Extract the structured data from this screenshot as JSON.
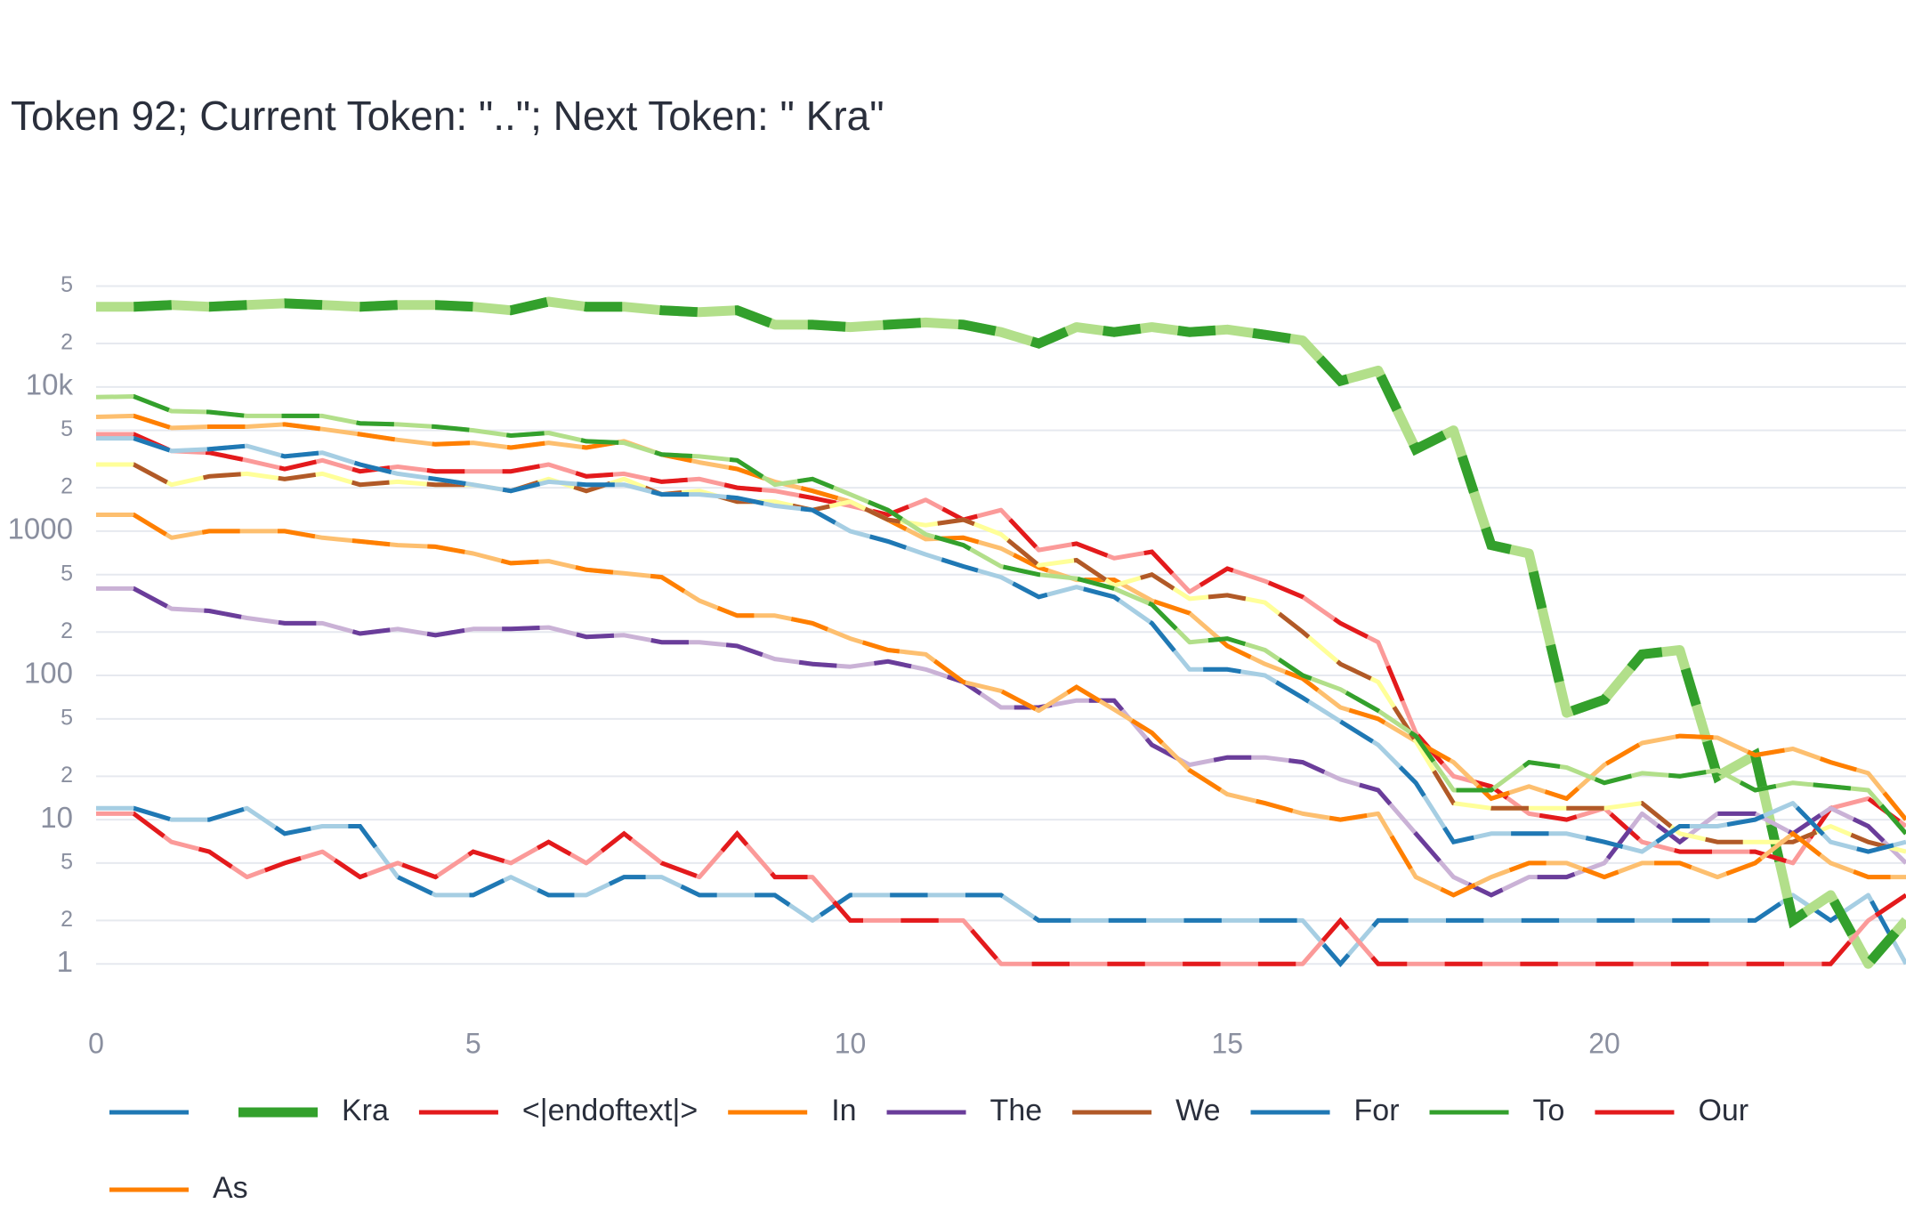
{
  "chart_data": {
    "type": "line",
    "title": "Token 92; Current Token: \"..\"; Next Token: \" Kra\"",
    "x": [
      0,
      0.5,
      1,
      1.5,
      2,
      2.5,
      3,
      3.5,
      4,
      4.5,
      5,
      5.5,
      6,
      6.5,
      7,
      7.5,
      8,
      8.5,
      9,
      9.5,
      10,
      10.5,
      11,
      11.5,
      12,
      12.5,
      13,
      13.5,
      14,
      14.5,
      15,
      15.5,
      16,
      16.5,
      17,
      17.5,
      18,
      18.5,
      19,
      19.5,
      20,
      20.5,
      21,
      21.5,
      22,
      22.5,
      23,
      23.5,
      24
    ],
    "xlim": [
      0,
      24
    ],
    "xticks": [
      0,
      5,
      10,
      15,
      20
    ],
    "log_y": true,
    "ylim": [
      0.5,
      75000
    ],
    "yticks": [
      1,
      {
        "value": 2,
        "label": "2"
      },
      {
        "value": 5,
        "label": "5"
      },
      10,
      {
        "value": 20,
        "label": "2"
      },
      {
        "value": 50,
        "label": "5"
      },
      100,
      {
        "value": 200,
        "label": "2"
      },
      {
        "value": 500,
        "label": "5"
      },
      1000,
      {
        "value": 2000,
        "label": "2"
      },
      {
        "value": 5000,
        "label": "5"
      },
      {
        "value": 10000,
        "label": "10k"
      },
      {
        "value": 20000,
        "label": "2"
      },
      {
        "value": 50000,
        "label": "5"
      }
    ],
    "grid": true,
    "series": [
      {
        "colors": [
          "#1f78b4",
          "#a6cee3"
        ],
        "values": [
          12,
          12,
          10,
          10,
          12,
          8,
          9,
          9,
          4,
          3,
          3,
          4,
          3,
          3,
          4,
          4,
          3,
          3,
          3,
          2,
          3,
          3,
          3,
          3,
          3,
          2,
          2,
          2,
          2,
          2,
          2,
          2,
          2,
          1,
          2,
          2,
          2,
          2,
          2,
          2,
          2,
          2,
          2,
          2,
          2,
          3,
          2,
          3,
          1
        ]
      },
      {
        "name": "Kra",
        "colors": [
          "#33a02c",
          "#b2df8a"
        ],
        "highlight": true,
        "values": [
          36000,
          36000,
          37000,
          36000,
          37000,
          38000,
          37000,
          36000,
          37000,
          37000,
          36000,
          34000,
          39000,
          36000,
          36000,
          34000,
          33000,
          34000,
          27000,
          27000,
          26000,
          27000,
          28000,
          27000,
          24000,
          20000,
          26000,
          24000,
          26000,
          24000,
          25000,
          23000,
          21000,
          11000,
          13000,
          3700,
          5000,
          800,
          700,
          55,
          68,
          140,
          150,
          20,
          28,
          2,
          3,
          1,
          2
        ]
      },
      {
        "name": "<|endoftext|>",
        "colors": [
          "#e31a1c",
          "#fb9a99"
        ],
        "values": [
          4700,
          4700,
          3600,
          3500,
          3100,
          2700,
          3100,
          2600,
          2800,
          2600,
          2600,
          2600,
          2900,
          2400,
          2500,
          2200,
          2300,
          2000,
          1900,
          1700,
          1500,
          1300,
          1650,
          1200,
          1400,
          740,
          820,
          650,
          720,
          380,
          550,
          450,
          350,
          230,
          170,
          40,
          20,
          17,
          11,
          10,
          12,
          7,
          6,
          6,
          6,
          5,
          12,
          14,
          9
        ]
      },
      {
        "name": "In",
        "colors": [
          "#ff7f00",
          "#fdbf6f"
        ],
        "values": [
          6200,
          6300,
          5200,
          5300,
          5300,
          5500,
          5100,
          4700,
          4300,
          4000,
          4100,
          3800,
          4100,
          3800,
          4200,
          3400,
          3000,
          2700,
          2200,
          1900,
          1600,
          1200,
          880,
          900,
          760,
          560,
          460,
          460,
          330,
          270,
          160,
          120,
          95,
          60,
          50,
          35,
          25,
          14,
          17,
          14,
          24,
          34,
          38,
          37,
          28,
          31,
          25,
          21,
          10
        ]
      },
      {
        "name": "The",
        "colors": [
          "#6a3d9a",
          "#cab2d6"
        ],
        "values": [
          400,
          400,
          290,
          280,
          250,
          230,
          230,
          195,
          210,
          190,
          210,
          210,
          215,
          185,
          190,
          170,
          170,
          160,
          130,
          120,
          115,
          125,
          110,
          90,
          60,
          60,
          67,
          67,
          33,
          24,
          27,
          27,
          25,
          19,
          16,
          8,
          4,
          3,
          4,
          4,
          5,
          11,
          7,
          11,
          11,
          8,
          12,
          9,
          5
        ]
      },
      {
        "name": "We",
        "colors": [
          "#b15928",
          "#ffff99"
        ],
        "values": [
          2900,
          2900,
          2100,
          2400,
          2500,
          2300,
          2500,
          2100,
          2200,
          2100,
          2100,
          1900,
          2300,
          1900,
          2300,
          1800,
          1900,
          1600,
          1600,
          1400,
          1600,
          1200,
          1100,
          1200,
          950,
          580,
          630,
          420,
          500,
          340,
          360,
          320,
          200,
          120,
          90,
          35,
          13,
          12,
          12,
          12,
          12,
          13,
          8,
          7,
          7,
          7,
          9,
          7,
          6
        ]
      },
      {
        "name": "For",
        "colors": [
          "#1f78b4",
          "#a6cee3"
        ],
        "values": [
          4400,
          4400,
          3600,
          3700,
          3900,
          3300,
          3500,
          2900,
          2500,
          2300,
          2100,
          1900,
          2200,
          2100,
          2100,
          1800,
          1800,
          1700,
          1500,
          1400,
          1000,
          850,
          690,
          570,
          480,
          350,
          410,
          350,
          230,
          110,
          110,
          100,
          70,
          48,
          33,
          18,
          7,
          8,
          8,
          8,
          7,
          6,
          9,
          9,
          10,
          13,
          7,
          6,
          7
        ]
      },
      {
        "name": "To",
        "colors": [
          "#33a02c",
          "#b2df8a"
        ],
        "values": [
          8500,
          8600,
          6800,
          6700,
          6300,
          6300,
          6300,
          5600,
          5500,
          5300,
          5000,
          4600,
          4800,
          4200,
          4100,
          3400,
          3300,
          3100,
          2100,
          2300,
          1800,
          1400,
          950,
          800,
          570,
          500,
          470,
          400,
          310,
          170,
          180,
          150,
          100,
          80,
          57,
          38,
          16,
          16,
          25,
          23,
          18,
          21,
          20,
          22,
          16,
          18,
          17,
          16,
          8
        ]
      },
      {
        "name": "Our",
        "colors": [
          "#e31a1c",
          "#fb9a99"
        ],
        "values": [
          11,
          11,
          7,
          6,
          4,
          5,
          6,
          4,
          5,
          4,
          6,
          5,
          7,
          5,
          8,
          5,
          4,
          8,
          4,
          4,
          2,
          2,
          2,
          2,
          1,
          1,
          1,
          1,
          1,
          1,
          1,
          1,
          1,
          2,
          1,
          1,
          1,
          1,
          1,
          1,
          1,
          1,
          1,
          1,
          1,
          1,
          1,
          2,
          3
        ]
      },
      {
        "name": "As",
        "colors": [
          "#ff7f00",
          "#fdbf6f"
        ],
        "values": [
          1300,
          1300,
          900,
          1000,
          1000,
          1000,
          900,
          850,
          800,
          780,
          700,
          600,
          620,
          540,
          510,
          480,
          330,
          260,
          260,
          230,
          180,
          150,
          140,
          90,
          78,
          57,
          83,
          58,
          40,
          22,
          15,
          13,
          11,
          10,
          11,
          4,
          3,
          4,
          5,
          5,
          4,
          5,
          5,
          4,
          5,
          8,
          5,
          4,
          4
        ]
      }
    ]
  }
}
